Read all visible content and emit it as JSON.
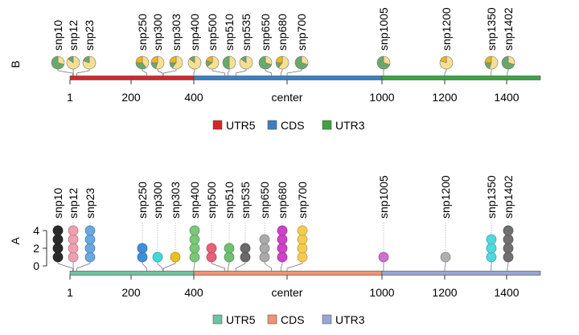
{
  "chart_data": [
    {
      "type": "lollipop-pie",
      "panel_label": "B",
      "x_tick_labels": [
        "1",
        "200",
        "400",
        "center",
        "1000",
        "1200",
        "1400"
      ],
      "x_tick_values": [
        1,
        200,
        400,
        700,
        1000,
        1200,
        1400
      ],
      "xlim": [
        1,
        1500
      ],
      "features": [
        {
          "name": "UTR5",
          "start": 1,
          "end": 400,
          "color": "#d62728"
        },
        {
          "name": "CDS",
          "start": 400,
          "end": 1000,
          "color": "#3d7fc1"
        },
        {
          "name": "UTR3",
          "start": 1000,
          "end": 1500,
          "color": "#3fa33f"
        }
      ],
      "pie_colors": [
        "#f6e08f",
        "#6aa86a",
        "#e8b820"
      ],
      "snps": [
        {
          "name": "snp10",
          "pos": 10,
          "fractions": [
            0.3,
            0.7,
            0
          ]
        },
        {
          "name": "snp12",
          "pos": 12,
          "fractions": [
            0.85,
            0.15,
            0
          ]
        },
        {
          "name": "snp23",
          "pos": 23,
          "fractions": [
            0.8,
            0.2,
            0
          ]
        },
        {
          "name": "snp250",
          "pos": 250,
          "fractions": [
            0.4,
            0.35,
            0.25
          ]
        },
        {
          "name": "snp300",
          "pos": 300,
          "fractions": [
            0.55,
            0.2,
            0.25
          ]
        },
        {
          "name": "snp303",
          "pos": 303,
          "fractions": [
            0.6,
            0.15,
            0.25
          ]
        },
        {
          "name": "snp400",
          "pos": 400,
          "fractions": [
            0.85,
            0.15,
            0
          ]
        },
        {
          "name": "snp500",
          "pos": 500,
          "fractions": [
            0.65,
            0.15,
            0.2
          ]
        },
        {
          "name": "snp510",
          "pos": 510,
          "fractions": [
            0.5,
            0.5,
            0
          ]
        },
        {
          "name": "snp535",
          "pos": 535,
          "fractions": [
            0.85,
            0.15,
            0
          ]
        },
        {
          "name": "snp650",
          "pos": 650,
          "fractions": [
            0.3,
            0.7,
            0
          ]
        },
        {
          "name": "snp680",
          "pos": 680,
          "fractions": [
            0.6,
            0.15,
            0.25
          ]
        },
        {
          "name": "snp700",
          "pos": 700,
          "fractions": [
            0.3,
            0.7,
            0
          ]
        },
        {
          "name": "snp1005",
          "pos": 1005,
          "fractions": [
            0.3,
            0.7,
            0
          ]
        },
        {
          "name": "snp1200",
          "pos": 1200,
          "fractions": [
            0.8,
            0,
            0.2
          ]
        },
        {
          "name": "snp1350",
          "pos": 1350,
          "fractions": [
            0.55,
            0.2,
            0.25
          ]
        },
        {
          "name": "snp1402",
          "pos": 1402,
          "fractions": [
            0.3,
            0.7,
            0
          ]
        }
      ]
    },
    {
      "type": "lollipop",
      "panel_label": "A",
      "y_tick_labels": [
        "0",
        "2",
        "4"
      ],
      "ylim": [
        0,
        4
      ],
      "x_tick_labels": [
        "1",
        "200",
        "400",
        "center",
        "1000",
        "1200",
        "1400"
      ],
      "x_tick_values": [
        1,
        200,
        400,
        700,
        1000,
        1200,
        1400
      ],
      "xlim": [
        1,
        1500
      ],
      "features": [
        {
          "name": "UTR5",
          "start": 1,
          "end": 400,
          "color": "#6cc4a0"
        },
        {
          "name": "CDS",
          "start": 400,
          "end": 1000,
          "color": "#f19272"
        },
        {
          "name": "UTR3",
          "start": 1000,
          "end": 1500,
          "color": "#9aa6d4"
        }
      ],
      "snps": [
        {
          "name": "snp10",
          "pos": 10,
          "count": 4,
          "color": "#2b2b2b"
        },
        {
          "name": "snp12",
          "pos": 12,
          "count": 4,
          "color": "#f0a0b0"
        },
        {
          "name": "snp23",
          "pos": 23,
          "count": 4,
          "color": "#6aa8e0"
        },
        {
          "name": "snp250",
          "pos": 250,
          "count": 2,
          "color": "#3d8fd8"
        },
        {
          "name": "snp300",
          "pos": 300,
          "count": 1,
          "color": "#40d8d8"
        },
        {
          "name": "snp303",
          "pos": 303,
          "count": 1,
          "color": "#e8c020"
        },
        {
          "name": "snp400",
          "pos": 400,
          "count": 4,
          "color": "#7ac87a"
        },
        {
          "name": "snp500",
          "pos": 500,
          "count": 2,
          "color": "#e8607a"
        },
        {
          "name": "snp510",
          "pos": 510,
          "count": 2,
          "color": "#70c070"
        },
        {
          "name": "snp535",
          "pos": 535,
          "count": 2,
          "color": "#6a6a6a"
        },
        {
          "name": "snp650",
          "pos": 650,
          "count": 3,
          "color": "#aaaaaa"
        },
        {
          "name": "snp680",
          "pos": 680,
          "count": 4,
          "color": "#d040c8"
        },
        {
          "name": "snp700",
          "pos": 700,
          "count": 4,
          "color": "#f5cc50"
        },
        {
          "name": "snp1005",
          "pos": 1005,
          "count": 1,
          "color": "#d070d0"
        },
        {
          "name": "snp1200",
          "pos": 1200,
          "count": 1,
          "color": "#b0b0b0"
        },
        {
          "name": "snp1350",
          "pos": 1350,
          "count": 3,
          "color": "#50d8e0"
        },
        {
          "name": "snp1402",
          "pos": 1402,
          "count": 4,
          "color": "#707070"
        }
      ]
    }
  ]
}
